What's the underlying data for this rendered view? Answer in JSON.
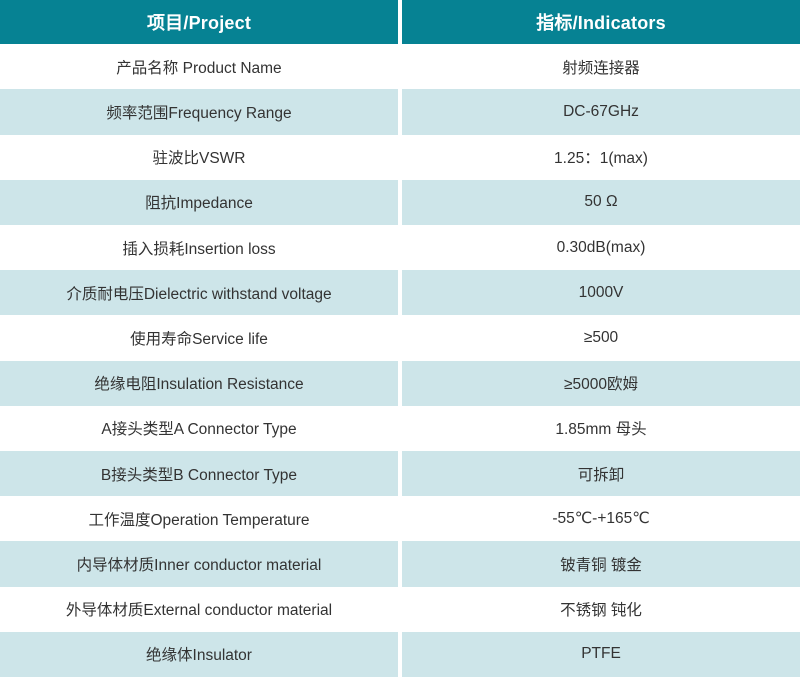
{
  "table": {
    "header": {
      "project": "项目/Project",
      "indicators": "指标/Indicators"
    },
    "rows": [
      {
        "project": "产品名称 Product Name",
        "indicator": "射频连接器"
      },
      {
        "project": "频率范围Frequency Range",
        "indicator": "DC-67GHz"
      },
      {
        "project": "驻波比VSWR",
        "indicator": "1.25：1(max)"
      },
      {
        "project": "阻抗Impedance",
        "indicator": "50 Ω"
      },
      {
        "project": "插入损耗Insertion loss",
        "indicator": "0.30dB(max)"
      },
      {
        "project": "介质耐电压Dielectric withstand voltage",
        "indicator": "1000V"
      },
      {
        "project": "使用寿命Service life",
        "indicator": "≥500"
      },
      {
        "project": "绝缘电阻Insulation Resistance",
        "indicator": "≥5000欧姆"
      },
      {
        "project": "A接头类型A Connector Type",
        "indicator": "1.85mm 母头"
      },
      {
        "project": "B接头类型B Connector Type",
        "indicator": "可拆卸"
      },
      {
        "project": "工作温度Operation Temperature",
        "indicator": "-55℃-+165℃"
      },
      {
        "project": "内导体材质Inner conductor material",
        "indicator": "铍青铜 镀金"
      },
      {
        "project": "外导体材质External conductor material",
        "indicator": "不锈钢 钝化"
      },
      {
        "project": "绝缘体Insulator",
        "indicator": "PTFE"
      }
    ],
    "colors": {
      "header_bg": "#068293",
      "header_text": "#ffffff",
      "row_bg": "#ffffff",
      "row_alt_bg": "#cde5e9",
      "body_text": "#333333",
      "divider": "#ffffff"
    }
  }
}
